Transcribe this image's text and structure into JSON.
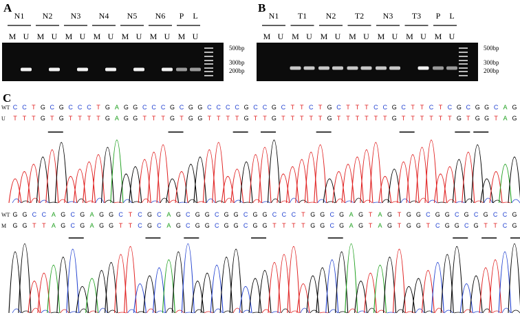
{
  "panels": [
    {
      "label": "A",
      "lanes": [
        {
          "name": "N1",
          "sub": [
            "M",
            "U"
          ]
        },
        {
          "name": "N2",
          "sub": [
            "M",
            "U"
          ]
        },
        {
          "name": "N3",
          "sub": [
            "M",
            "U"
          ]
        },
        {
          "name": "N4",
          "sub": [
            "M",
            "U"
          ]
        },
        {
          "name": "N5",
          "sub": [
            "M",
            "U"
          ]
        },
        {
          "name": "N6",
          "sub": [
            "M",
            "U"
          ]
        },
        {
          "name": "P",
          "sub": [
            "M"
          ]
        },
        {
          "name": "L",
          "sub": [
            "U"
          ]
        }
      ],
      "markers": [
        "500bp",
        "300bp",
        "200bp"
      ]
    },
    {
      "label": "B",
      "lanes": [
        {
          "name": "N1",
          "sub": [
            "M",
            "U"
          ]
        },
        {
          "name": "T1",
          "sub": [
            "M",
            "U"
          ]
        },
        {
          "name": "N2",
          "sub": [
            "M",
            "U"
          ]
        },
        {
          "name": "T2",
          "sub": [
            "M",
            "U"
          ]
        },
        {
          "name": "N3",
          "sub": [
            "M",
            "U"
          ]
        },
        {
          "name": "T3",
          "sub": [
            "M",
            "U"
          ]
        },
        {
          "name": "P",
          "sub": [
            "M"
          ]
        },
        {
          "name": "L",
          "sub": [
            "U"
          ]
        }
      ],
      "markers": [
        "500bp",
        "300bp",
        "200bp"
      ]
    }
  ],
  "sequencing": {
    "label": "C",
    "blocks": [
      {
        "rows": [
          {
            "label": "WT",
            "seq": "CCTGCGCCCTGAGGCCCGCGGCCCCGCCGCTTCTGCTTTCCGCTTCTCGCGGCAG"
          },
          {
            "label": "U",
            "seq": "TTTGTGTTTTGAGGTTTGTGGTTTTGTTGTTTTTGTTTTTTGTTTTTTGTGGTAG"
          }
        ]
      },
      {
        "rows": [
          {
            "label": "WT",
            "seq": "GGCCAGCGAGGCTCGCAGCGGCGGCGGCCCTGGCGAGTAGTGGCGGCGCGCCG"
          },
          {
            "label": "M",
            "seq": "GGTTAGCGAGGTTCGCAGCGGCGGCGGTTTTGGCGAGTAGTGGTCGGCGTTCG"
          }
        ]
      }
    ]
  }
}
